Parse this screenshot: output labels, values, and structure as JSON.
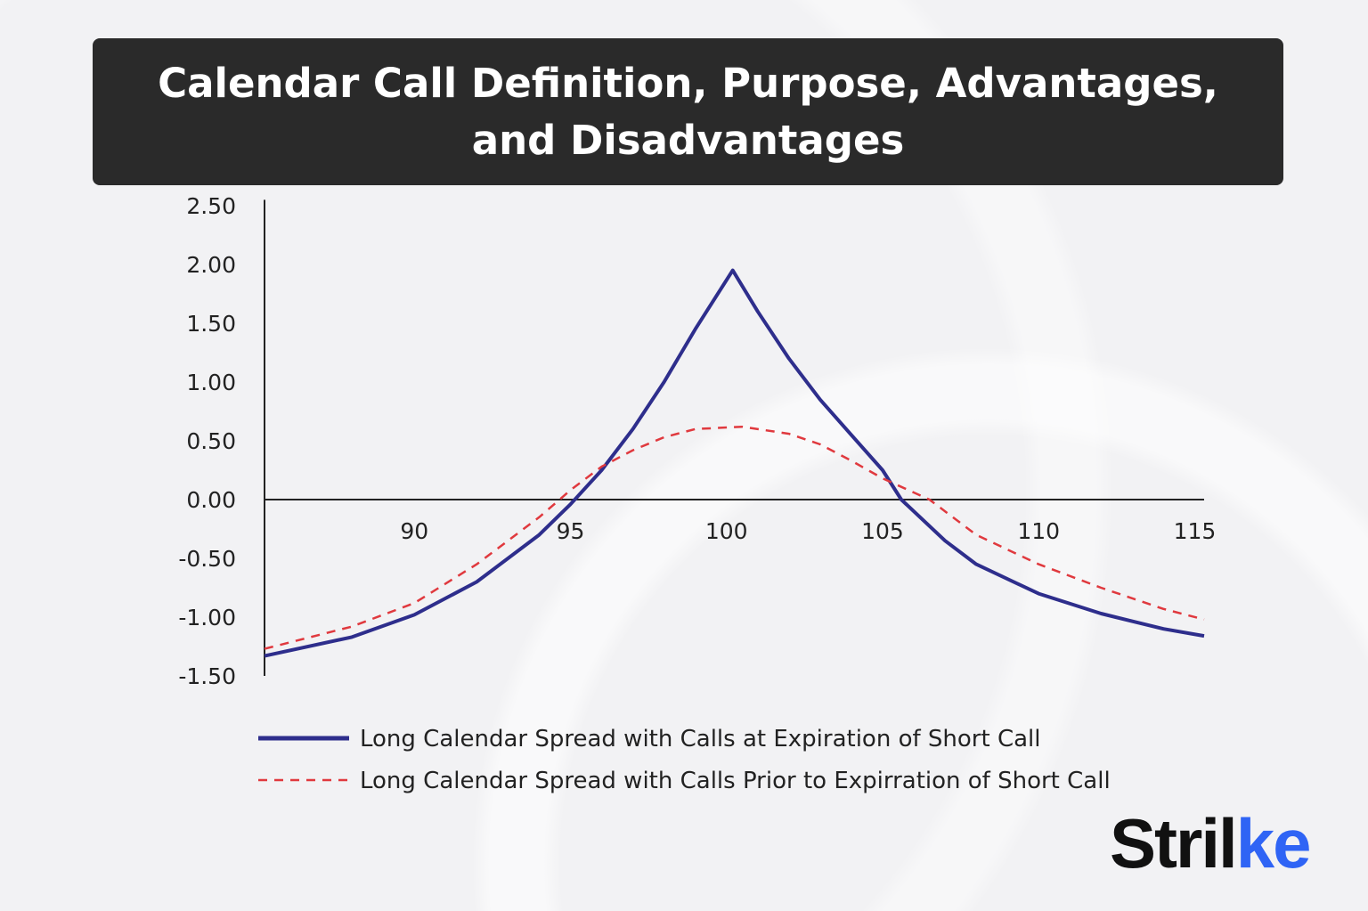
{
  "title": "Calendar Call Definition, Purpose, Advantages, and Disadvantages",
  "logo": {
    "main": "Stril",
    "accent": "ke",
    "accent_color": "#2f64f5"
  },
  "chart_data": {
    "type": "line",
    "title": "Calendar Call Definition, Purpose, Advantages, and Disadvantages",
    "xlabel": "",
    "ylabel": "",
    "xlim": [
      85.2,
      115.3
    ],
    "ylim": [
      -1.5,
      2.5
    ],
    "x_ticks": [
      "90",
      "95",
      "100",
      "105",
      "110",
      "115"
    ],
    "x_tick_values": [
      90,
      95,
      100,
      105,
      110,
      115
    ],
    "y_ticks": [
      "2.50",
      "2.00",
      "1.50",
      "1.00",
      "0.50",
      "0.00",
      "-0.50",
      "-1.00",
      "-1.50"
    ],
    "y_tick_values": [
      2.5,
      2,
      1.5,
      1,
      0.5,
      0,
      -0.5,
      -1,
      -1.5
    ],
    "grid": false,
    "legend_placement": "bottom",
    "series": [
      {
        "name": "Long Calendar Spread with Calls at Expiration of Short Call",
        "color": "#2e2e8c",
        "style": "solid",
        "x": [
          85.2,
          88,
          90,
          92,
          94,
          95,
          96,
          97,
          98,
          99,
          100.2,
          101,
          102,
          103,
          104,
          105,
          105.6,
          107,
          108,
          110,
          112,
          114,
          115.3
        ],
        "y": [
          -1.33,
          -1.17,
          -0.98,
          -0.7,
          -0.3,
          -0.04,
          0.25,
          0.6,
          1.0,
          1.45,
          1.95,
          1.6,
          1.2,
          0.85,
          0.55,
          0.25,
          0,
          -0.35,
          -0.55,
          -0.8,
          -0.97,
          -1.1,
          -1.16
        ]
      },
      {
        "name": "Long Calendar Spread with Calls Prior to Expirration of Short Call",
        "color": "#e0393e",
        "style": "dashed",
        "x": [
          85.2,
          88,
          90,
          92,
          94,
          95,
          96,
          97,
          98,
          99,
          100.5,
          102,
          103,
          104,
          105,
          106.5,
          108,
          110,
          112,
          114,
          115.3
        ],
        "y": [
          -1.27,
          -1.08,
          -0.88,
          -0.55,
          -0.15,
          0.08,
          0.28,
          0.42,
          0.53,
          0.6,
          0.62,
          0.56,
          0.47,
          0.33,
          0.18,
          0,
          -0.3,
          -0.55,
          -0.75,
          -0.93,
          -1.02
        ]
      }
    ]
  }
}
